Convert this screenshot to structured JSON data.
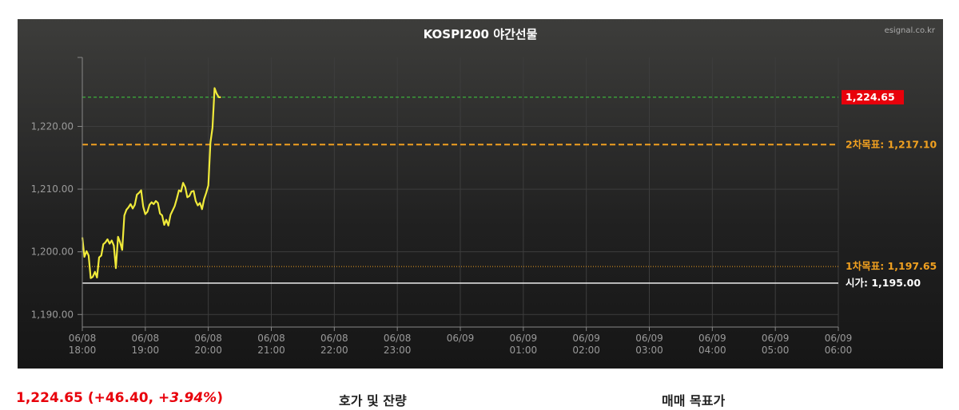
{
  "chart_data": {
    "type": "line",
    "title": "KOSPI200 야간선물",
    "source": "esignal.co.kr",
    "ylim": [
      1188,
      1231
    ],
    "yticks": [
      1190,
      1200,
      1210,
      1220
    ],
    "ytick_labels": [
      "1,190.00",
      "1,200.00",
      "1,210.00",
      "1,220.00"
    ],
    "x_ticks": [
      {
        "date": "06/08",
        "time": "18:00"
      },
      {
        "date": "06/08",
        "time": "19:00"
      },
      {
        "date": "06/08",
        "time": "20:00"
      },
      {
        "date": "06/08",
        "time": "21:00"
      },
      {
        "date": "06/08",
        "time": "22:00"
      },
      {
        "date": "06/08",
        "time": "23:00"
      },
      {
        "date": "06/09",
        "time": ""
      },
      {
        "date": "06/09",
        "time": "01:00"
      },
      {
        "date": "06/09",
        "time": "02:00"
      },
      {
        "date": "06/09",
        "time": "03:00"
      },
      {
        "date": "06/09",
        "time": "04:00"
      },
      {
        "date": "06/09",
        "time": "05:00"
      },
      {
        "date": "06/09",
        "time": "06:00"
      }
    ],
    "grid": true,
    "series": [
      {
        "color": "#f0ea3a",
        "x": [
          "18:00",
          "18:02",
          "18:04",
          "18:06",
          "18:08",
          "18:10",
          "18:12",
          "18:14",
          "18:16",
          "18:18",
          "18:20",
          "18:22",
          "18:24",
          "18:26",
          "18:28",
          "18:30",
          "18:32",
          "18:34",
          "18:36",
          "18:38",
          "18:40",
          "18:42",
          "18:44",
          "18:46",
          "18:48",
          "18:50",
          "18:52",
          "18:54",
          "18:56",
          "18:58",
          "19:00",
          "19:02",
          "19:04",
          "19:06",
          "19:08",
          "19:10",
          "19:12",
          "19:14",
          "19:16",
          "19:18",
          "19:20",
          "19:22",
          "19:24",
          "19:26",
          "19:28",
          "19:30",
          "19:32",
          "19:34",
          "19:36",
          "19:38",
          "19:40",
          "19:42",
          "19:44",
          "19:46",
          "19:48",
          "19:50",
          "19:52",
          "19:54",
          "19:56",
          "19:58",
          "20:00",
          "20:02",
          "20:04",
          "20:06",
          "20:08",
          "20:10",
          "20:12"
        ],
        "values": [
          1202.3,
          1199.2,
          1200.1,
          1199.4,
          1195.8,
          1196.0,
          1196.8,
          1195.9,
          1199.1,
          1199.4,
          1201.2,
          1201.5,
          1202.0,
          1201.3,
          1201.8,
          1201.0,
          1197.4,
          1202.4,
          1201.5,
          1200.3,
          1205.8,
          1206.7,
          1207.1,
          1207.6,
          1206.9,
          1207.5,
          1209.1,
          1209.4,
          1209.8,
          1207.2,
          1206.0,
          1206.4,
          1207.5,
          1207.9,
          1207.6,
          1208.1,
          1207.8,
          1206.1,
          1205.8,
          1204.3,
          1205.1,
          1204.2,
          1205.9,
          1206.6,
          1207.3,
          1208.5,
          1209.8,
          1209.6,
          1211.0,
          1210.3,
          1208.7,
          1208.9,
          1209.6,
          1209.7,
          1208.1,
          1207.4,
          1207.8,
          1206.8,
          1208.4,
          1209.4,
          1210.6,
          1217.4,
          1219.8,
          1226.1,
          1225.2,
          1224.65,
          1224.65
        ]
      }
    ],
    "reference_lines": [
      {
        "label": "1,224.65",
        "value": 1224.65,
        "color": "#3fd23f",
        "style": "dashed",
        "badge_bg": "#e8000b",
        "badge_fg": "#ffffff"
      },
      {
        "label": "2차목표: 1,217.10",
        "value": 1217.1,
        "color": "#f0a020",
        "style": "bold-dashed",
        "badge_fg": "#f0a020"
      },
      {
        "label": "1차목표: 1,197.65",
        "value": 1197.65,
        "color": "#f0a020",
        "style": "dotted",
        "badge_fg": "#f0a020"
      },
      {
        "label": "시가: 1,195.00",
        "value": 1195.0,
        "color": "#ffffff",
        "style": "solid",
        "badge_fg": "#ffffff"
      }
    ]
  },
  "quote": {
    "price": "1,224.65",
    "change": "(+46.40, ",
    "percent": "+3.94%",
    "close": ")"
  },
  "links": {
    "orderbook": "호가 및 잔량",
    "targets": "매매 목표가"
  },
  "colors": {
    "background_top": "#3c3c3a",
    "background_bottom": "#181818",
    "grid": "#3b3b3b",
    "quote_red": "#e8000b"
  }
}
